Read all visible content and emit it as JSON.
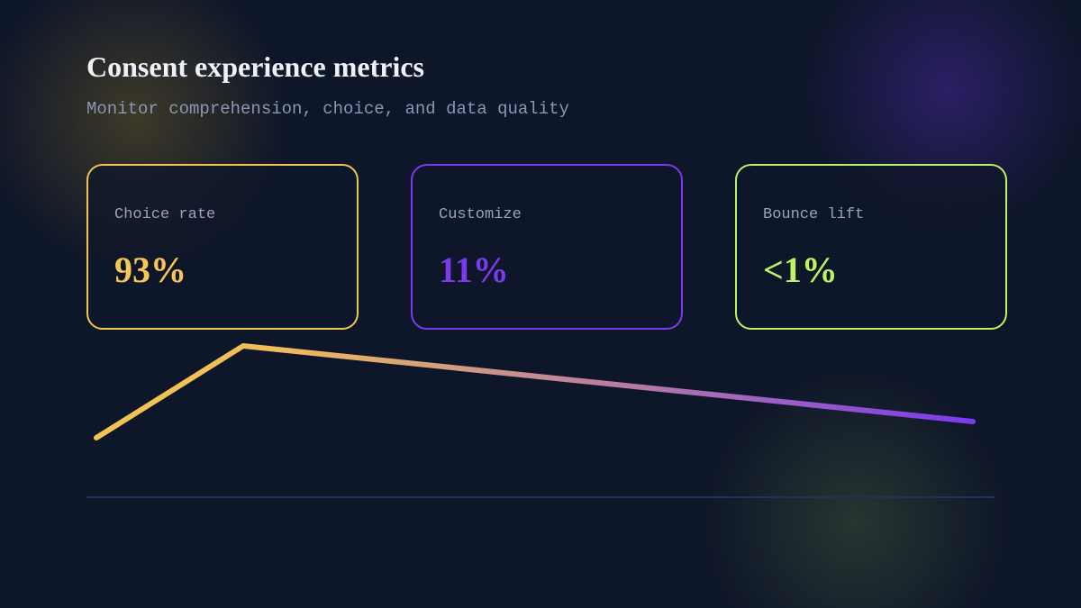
{
  "header": {
    "title": "Consent experience metrics",
    "subtitle": "Monitor comprehension, choice, and data quality"
  },
  "metrics": [
    {
      "label": "Choice rate",
      "value": "93%"
    },
    {
      "label": "Customize",
      "value": "11%"
    },
    {
      "label": "Bounce lift",
      "value": "<1%"
    }
  ]
}
